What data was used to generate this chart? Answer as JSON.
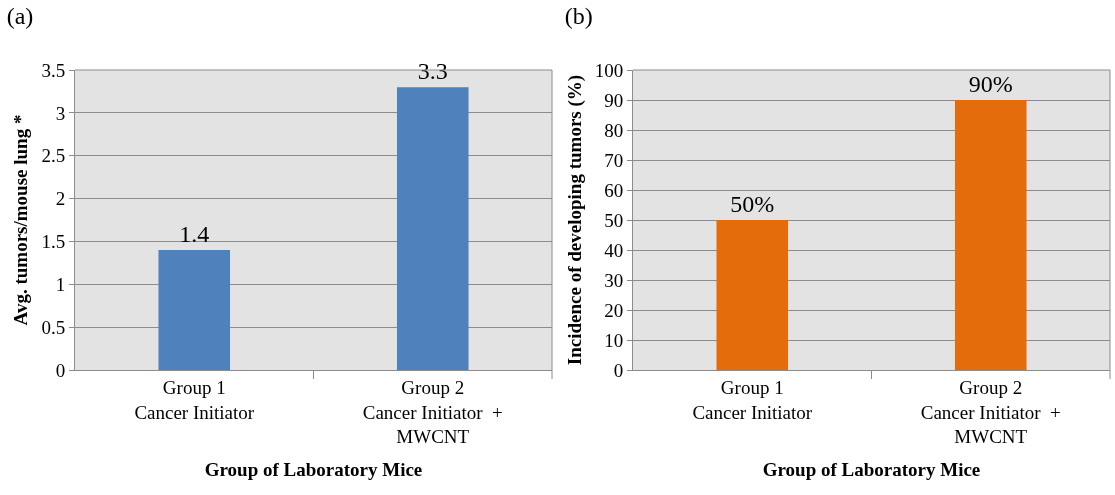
{
  "chart_data": [
    {
      "type": "bar",
      "title": "(a)",
      "xlabel": "Group of Laboratory Mice",
      "ylabel": "Avg. tumors/mouse lung *",
      "categories": [
        "Group 1\nCancer Initiator",
        "Group 2\nCancer Initiator  +\nMWCNT"
      ],
      "values": [
        1.4,
        3.3
      ],
      "color": "#4f81bd",
      "ylim": [
        0,
        3.5
      ],
      "yticks": [
        0,
        0.5,
        1,
        1.5,
        2,
        2.5,
        3,
        3.5
      ],
      "grid": "y",
      "legend": false,
      "data_labels": true
    },
    {
      "type": "bar",
      "title": "(b)",
      "xlabel": "Group of Laboratory Mice",
      "ylabel": "Incidence of developing tumors (%)",
      "categories": [
        "Group 1\nCancer Initiator",
        "Group 2\nCancer Initiator  +\nMWCNT"
      ],
      "values": [
        50,
        90
      ],
      "value_labels": [
        "50%",
        "90%"
      ],
      "color": "#e46c0a",
      "ylim": [
        0,
        100
      ],
      "yticks": [
        0,
        10,
        20,
        30,
        40,
        50,
        60,
        70,
        80,
        90,
        100
      ],
      "grid": "y",
      "legend": false
    }
  ]
}
